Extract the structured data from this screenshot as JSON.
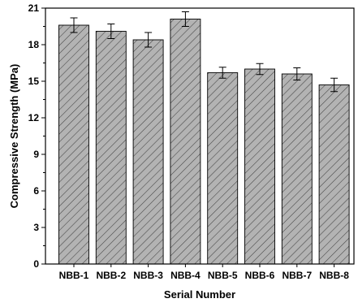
{
  "chart_data": {
    "type": "bar",
    "categories": [
      "NBB-1",
      "NBB-2",
      "NBB-3",
      "NBB-4",
      "NBB-5",
      "NBB-6",
      "NBB-7",
      "NBB-8"
    ],
    "values": [
      19.6,
      19.1,
      18.4,
      20.1,
      15.7,
      16.0,
      15.6,
      14.7
    ],
    "errors": [
      0.6,
      0.6,
      0.6,
      0.6,
      0.45,
      0.45,
      0.5,
      0.55
    ],
    "xlabel": "Serial Number",
    "ylabel": "Compressive Strength (MPa)",
    "ylim": [
      0,
      21
    ],
    "yticks": [
      "0",
      "3",
      "6",
      "9",
      "12",
      "15",
      "18",
      "21"
    ],
    "grid": false,
    "legend": "none",
    "bar_fill": "#b3b3b3",
    "hatch": "diagonal"
  }
}
